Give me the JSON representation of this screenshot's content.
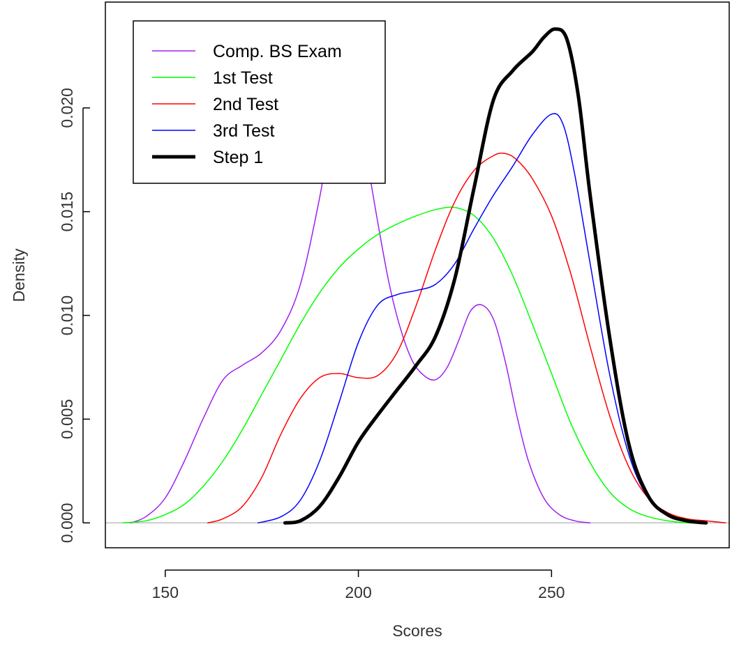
{
  "chart_data": {
    "type": "line",
    "title": "",
    "xlabel": "Scores",
    "ylabel": "Density",
    "xlim": [
      134.5,
      296
    ],
    "ylim": [
      -0.0012,
      0.0251
    ],
    "xticks": [
      150,
      200,
      250
    ],
    "xtick_labels": [
      "150",
      "200",
      "250"
    ],
    "yticks": [
      0,
      0.005,
      0.01,
      0.015,
      0.02
    ],
    "ytick_labels": [
      "0.000",
      "0.005",
      "0.010",
      "0.015",
      "0.020"
    ],
    "legend_position": "top-left",
    "grid": false,
    "baseline": {
      "y": 0,
      "color": "#bebebe"
    },
    "series": [
      {
        "name": "Comp. BS Exam",
        "color": "#a020f0",
        "line_width": 1.5,
        "points": [
          [
            141,
            0
          ],
          [
            145,
            0.0003
          ],
          [
            150,
            0.0012
          ],
          [
            155,
            0.003
          ],
          [
            160,
            0.0051
          ],
          [
            165,
            0.0069
          ],
          [
            170,
            0.0076
          ],
          [
            175,
            0.0082
          ],
          [
            180,
            0.0093
          ],
          [
            185,
            0.0115
          ],
          [
            190,
            0.0157
          ],
          [
            193,
            0.019
          ],
          [
            196,
            0.0208
          ],
          [
            199,
            0.0202
          ],
          [
            202,
            0.0177
          ],
          [
            205,
            0.0145
          ],
          [
            208,
            0.0115
          ],
          [
            211,
            0.0093
          ],
          [
            214,
            0.0078
          ],
          [
            217,
            0.0071
          ],
          [
            220,
            0.0069
          ],
          [
            223,
            0.0075
          ],
          [
            226,
            0.0088
          ],
          [
            229,
            0.0102
          ],
          [
            232,
            0.0105
          ],
          [
            235,
            0.0098
          ],
          [
            238,
            0.0078
          ],
          [
            241,
            0.0052
          ],
          [
            244,
            0.003
          ],
          [
            248,
            0.0012
          ],
          [
            252,
            0.0004
          ],
          [
            256,
            0.0001
          ],
          [
            260,
            0
          ]
        ]
      },
      {
        "name": "1st Test",
        "color": "#00ff00",
        "line_width": 1.5,
        "points": [
          [
            139,
            0
          ],
          [
            145,
            0.0001
          ],
          [
            150,
            0.0004
          ],
          [
            155,
            0.0009
          ],
          [
            160,
            0.0018
          ],
          [
            165,
            0.003
          ],
          [
            170,
            0.0045
          ],
          [
            175,
            0.0062
          ],
          [
            180,
            0.0079
          ],
          [
            185,
            0.0096
          ],
          [
            190,
            0.0111
          ],
          [
            195,
            0.0123
          ],
          [
            200,
            0.0132
          ],
          [
            205,
            0.0139
          ],
          [
            210,
            0.0144
          ],
          [
            215,
            0.0148
          ],
          [
            220,
            0.0151
          ],
          [
            225,
            0.0152
          ],
          [
            230,
            0.0148
          ],
          [
            235,
            0.0137
          ],
          [
            240,
            0.0119
          ],
          [
            245,
            0.0096
          ],
          [
            250,
            0.0072
          ],
          [
            255,
            0.0048
          ],
          [
            260,
            0.0029
          ],
          [
            265,
            0.0015
          ],
          [
            270,
            0.0007
          ],
          [
            275,
            0.0003
          ],
          [
            280,
            0.0001
          ],
          [
            285,
            0
          ],
          [
            290,
            0
          ]
        ]
      },
      {
        "name": "2nd Test",
        "color": "#ff0000",
        "line_width": 1.5,
        "points": [
          [
            161,
            0
          ],
          [
            165,
            0.0002
          ],
          [
            170,
            0.0008
          ],
          [
            175,
            0.0022
          ],
          [
            180,
            0.0043
          ],
          [
            185,
            0.006
          ],
          [
            190,
            0.007
          ],
          [
            195,
            0.0072
          ],
          [
            200,
            0.007
          ],
          [
            205,
            0.0071
          ],
          [
            210,
            0.0082
          ],
          [
            215,
            0.0105
          ],
          [
            220,
            0.0132
          ],
          [
            225,
            0.0155
          ],
          [
            230,
            0.017
          ],
          [
            235,
            0.0177
          ],
          [
            238,
            0.0178
          ],
          [
            241,
            0.0175
          ],
          [
            245,
            0.0166
          ],
          [
            250,
            0.0148
          ],
          [
            255,
            0.012
          ],
          [
            260,
            0.0085
          ],
          [
            265,
            0.0052
          ],
          [
            270,
            0.0027
          ],
          [
            275,
            0.0012
          ],
          [
            280,
            0.0005
          ],
          [
            285,
            0.0002
          ],
          [
            290,
            0.0001
          ],
          [
            295,
            0
          ]
        ]
      },
      {
        "name": "3rd Test",
        "color": "#0000ff",
        "line_width": 1.5,
        "points": [
          [
            174,
            0
          ],
          [
            180,
            0.0003
          ],
          [
            185,
            0.0011
          ],
          [
            190,
            0.003
          ],
          [
            195,
            0.0058
          ],
          [
            200,
            0.0087
          ],
          [
            205,
            0.0105
          ],
          [
            210,
            0.011
          ],
          [
            215,
            0.0112
          ],
          [
            220,
            0.0115
          ],
          [
            225,
            0.0125
          ],
          [
            230,
            0.0142
          ],
          [
            235,
            0.0158
          ],
          [
            240,
            0.0172
          ],
          [
            245,
            0.0187
          ],
          [
            250,
            0.0197
          ],
          [
            253,
            0.0192
          ],
          [
            256,
            0.0168
          ],
          [
            260,
            0.0125
          ],
          [
            265,
            0.0072
          ],
          [
            270,
            0.0033
          ],
          [
            275,
            0.0012
          ],
          [
            280,
            0.0004
          ],
          [
            285,
            0.0001
          ],
          [
            290,
            0
          ]
        ]
      },
      {
        "name": "Step 1",
        "color": "#000000",
        "line_width": 5,
        "points": [
          [
            181,
            0
          ],
          [
            185,
            0.0001
          ],
          [
            190,
            0.0008
          ],
          [
            195,
            0.0022
          ],
          [
            200,
            0.0039
          ],
          [
            205,
            0.0052
          ],
          [
            210,
            0.0064
          ],
          [
            215,
            0.0076
          ],
          [
            220,
            0.009
          ],
          [
            225,
            0.0118
          ],
          [
            230,
            0.0162
          ],
          [
            235,
            0.0204
          ],
          [
            240,
            0.0218
          ],
          [
            245,
            0.0227
          ],
          [
            248,
            0.0234
          ],
          [
            251,
            0.0238
          ],
          [
            254,
            0.0233
          ],
          [
            257,
            0.0205
          ],
          [
            260,
            0.0158
          ],
          [
            265,
            0.009
          ],
          [
            270,
            0.0038
          ],
          [
            275,
            0.0013
          ],
          [
            280,
            0.0004
          ],
          [
            285,
            0.0001
          ],
          [
            290,
            0
          ]
        ]
      }
    ]
  }
}
